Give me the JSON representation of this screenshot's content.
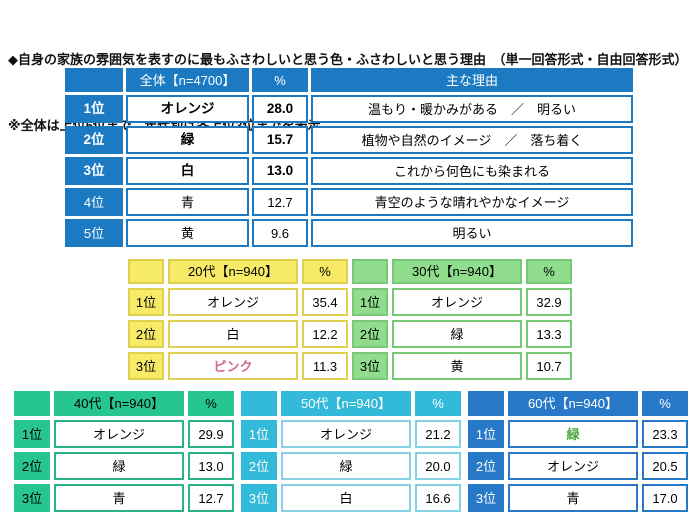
{
  "title": "◆自身の家族の雰囲気を表すのに最もふさわしいと思う色・ふさわしいと思う理由　（単一回答形式・自由回答形式）",
  "subtitle": "※全体は上位5位まで、年代別は各上位3位までを表示",
  "palette": {
    "overall_blue": "#1b7ac1",
    "age20_yellow": "#f6ea67",
    "age20_border": "#e0d052",
    "age30_green": "#90dd8e",
    "age40_emerald": "#27c68e",
    "age50_cyan": "#33b9da",
    "age60_blue": "#2779c7",
    "pink_text": "#d2688f",
    "green_text": "#4ea83a"
  },
  "chart_data": [
    {
      "type": "table",
      "name": "overall",
      "header": {
        "group": "全体【n=4700】",
        "percent": "%",
        "reason": "主な理由"
      },
      "rows": [
        {
          "rank": "1位",
          "color": "オレンジ",
          "percent": "28.0",
          "reason": "温もり・暖かみがある　／　明るい"
        },
        {
          "rank": "2位",
          "color": "緑",
          "percent": "15.7",
          "reason": "植物や自然のイメージ　／　落ち着く"
        },
        {
          "rank": "3位",
          "color": "白",
          "percent": "13.0",
          "reason": "これから何色にも染まれる"
        },
        {
          "rank": "4位",
          "color": "青",
          "percent": "12.7",
          "reason": "青空のような晴れやかなイメージ"
        },
        {
          "rank": "5位",
          "color": "黄",
          "percent": "9.6",
          "reason": "明るい"
        }
      ]
    },
    {
      "type": "table",
      "name": "age20",
      "header": {
        "group": "20代【n=940】",
        "percent": "%"
      },
      "rows": [
        {
          "rank": "1位",
          "color": "オレンジ",
          "percent": "35.4"
        },
        {
          "rank": "2位",
          "color": "白",
          "percent": "12.2"
        },
        {
          "rank": "3位",
          "color": "ピンク",
          "percent": "11.3"
        }
      ]
    },
    {
      "type": "table",
      "name": "age30",
      "header": {
        "group": "30代【n=940】",
        "percent": "%"
      },
      "rows": [
        {
          "rank": "1位",
          "color": "オレンジ",
          "percent": "32.9"
        },
        {
          "rank": "2位",
          "color": "緑",
          "percent": "13.3"
        },
        {
          "rank": "3位",
          "color": "黄",
          "percent": "10.7"
        }
      ]
    },
    {
      "type": "table",
      "name": "age40",
      "header": {
        "group": "40代【n=940】",
        "percent": "%"
      },
      "rows": [
        {
          "rank": "1位",
          "color": "オレンジ",
          "percent": "29.9"
        },
        {
          "rank": "2位",
          "color": "緑",
          "percent": "13.0"
        },
        {
          "rank": "3位",
          "color": "青",
          "percent": "12.7"
        }
      ]
    },
    {
      "type": "table",
      "name": "age50",
      "header": {
        "group": "50代【n=940】",
        "percent": "%"
      },
      "rows": [
        {
          "rank": "1位",
          "color": "オレンジ",
          "percent": "21.2"
        },
        {
          "rank": "2位",
          "color": "緑",
          "percent": "20.0"
        },
        {
          "rank": "3位",
          "color": "白",
          "percent": "16.6"
        }
      ]
    },
    {
      "type": "table",
      "name": "age60",
      "header": {
        "group": "60代【n=940】",
        "percent": "%"
      },
      "rows": [
        {
          "rank": "1位",
          "color": "緑",
          "percent": "23.3"
        },
        {
          "rank": "2位",
          "color": "オレンジ",
          "percent": "20.5"
        },
        {
          "rank": "3位",
          "color": "青",
          "percent": "17.0"
        }
      ]
    }
  ]
}
